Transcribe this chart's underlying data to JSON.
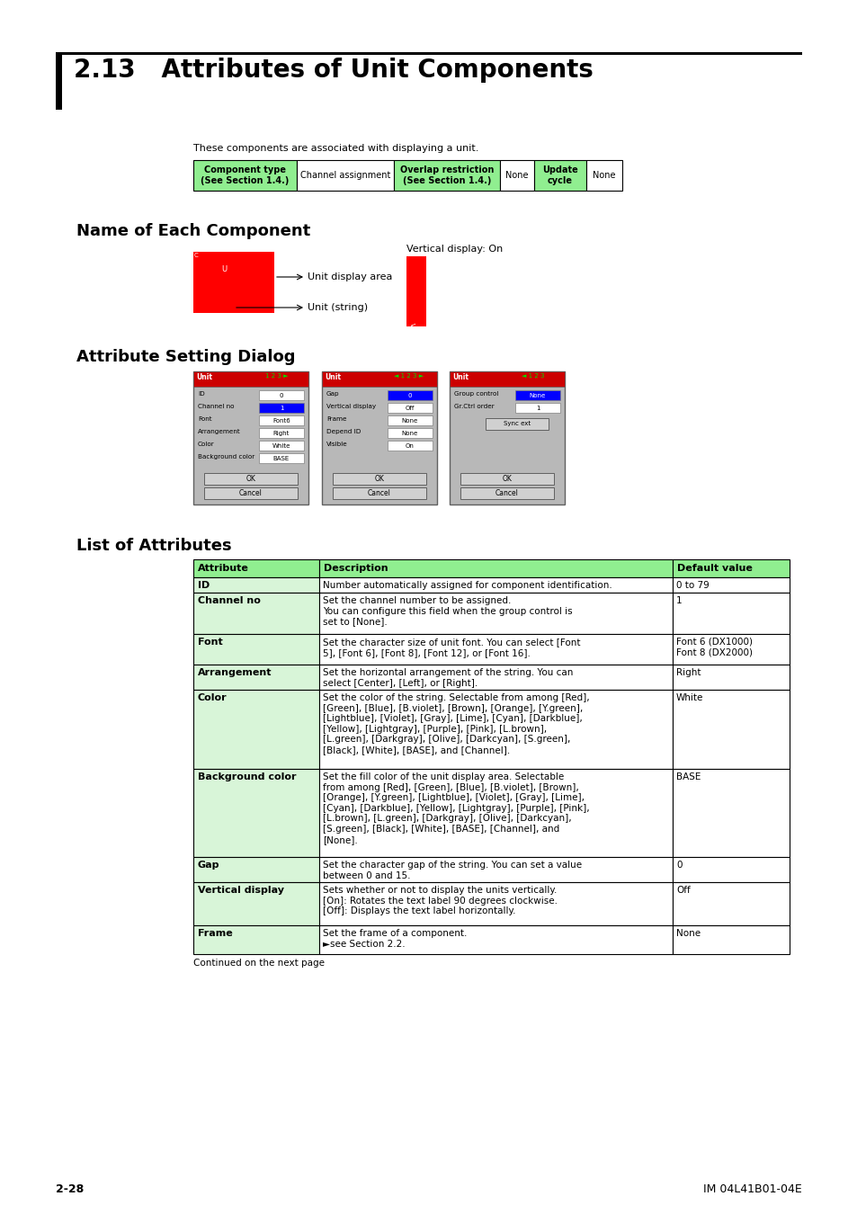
{
  "title": "2.13   Attributes of Unit Components",
  "page_bg": "#ffffff",
  "intro_text": "These components are associated with displaying a unit.",
  "comp_headers": [
    "Component type\n(See Section 1.4.)",
    "Channel assignment",
    "Overlap restriction\n(See Section 1.4.)",
    "None",
    "Update\ncycle",
    "None"
  ],
  "comp_green_cols": [
    0,
    2,
    4
  ],
  "comp_col_widths": [
    115,
    108,
    118,
    38,
    58,
    40
  ],
  "section1_title": "Name of Each Component",
  "section2_title": "Attribute Setting Dialog",
  "section3_title": "List of Attributes",
  "list_headers": [
    "Attribute",
    "Description",
    "Default value"
  ],
  "list_rows": [
    [
      "ID",
      "Number automatically assigned for component identification.",
      "0 to 79"
    ],
    [
      "Channel no",
      "Set the channel number to be assigned.\nYou can configure this field when the group control is\nset to [None].",
      "1"
    ],
    [
      "Font",
      "Set the character size of unit font. You can select [Font\n5], [Font 6], [Font 8], [Font 12], or [Font 16].",
      "Font 6 (DX1000)\nFont 8 (DX2000)"
    ],
    [
      "Arrangement",
      "Set the horizontal arrangement of the string. You can\nselect [Center], [Left], or [Right].",
      "Right"
    ],
    [
      "Color",
      "Set the color of the string. Selectable from among [Red],\n[Green], [Blue], [B.violet], [Brown], [Orange], [Y.green],\n[Lightblue], [Violet], [Gray], [Lime], [Cyan], [Darkblue],\n[Yellow], [Lightgray], [Purple], [Pink], [L.brown],\n[L.green], [Darkgray], [Olive], [Darkcyan], [S.green],\n[Black], [White], [BASE], and [Channel].",
      "White"
    ],
    [
      "Background color",
      "Set the fill color of the unit display area. Selectable\nfrom among [Red], [Green], [Blue], [B.violet], [Brown],\n[Orange], [Y.green], [Lightblue], [Violet], [Gray], [Lime],\n[Cyan], [Darkblue], [Yellow], [Lightgray], [Purple], [Pink],\n[L.brown], [L.green], [Darkgray], [Olive], [Darkcyan],\n[S.green], [Black], [White], [BASE], [Channel], and\n[None].",
      "BASE"
    ],
    [
      "Gap",
      "Set the character gap of the string. You can set a value\nbetween 0 and 15.",
      "0"
    ],
    [
      "Vertical display",
      "Sets whether or not to display the units vertically.\n[On]: Rotates the text label 90 degrees clockwise.\n[Off]: Displays the text label horizontally.",
      "Off"
    ],
    [
      "Frame",
      "Set the frame of a component.\n►see Section 2.2.",
      "None"
    ]
  ],
  "footer_left": "2-28",
  "footer_right": "IM 04L41B01-04E",
  "green_header": "#90EE90",
  "green_cell": "#d8f5d8",
  "white": "#ffffff",
  "black": "#000000",
  "gray_dialog": "#b8b8b8",
  "red_titlebar": "#cc0000"
}
